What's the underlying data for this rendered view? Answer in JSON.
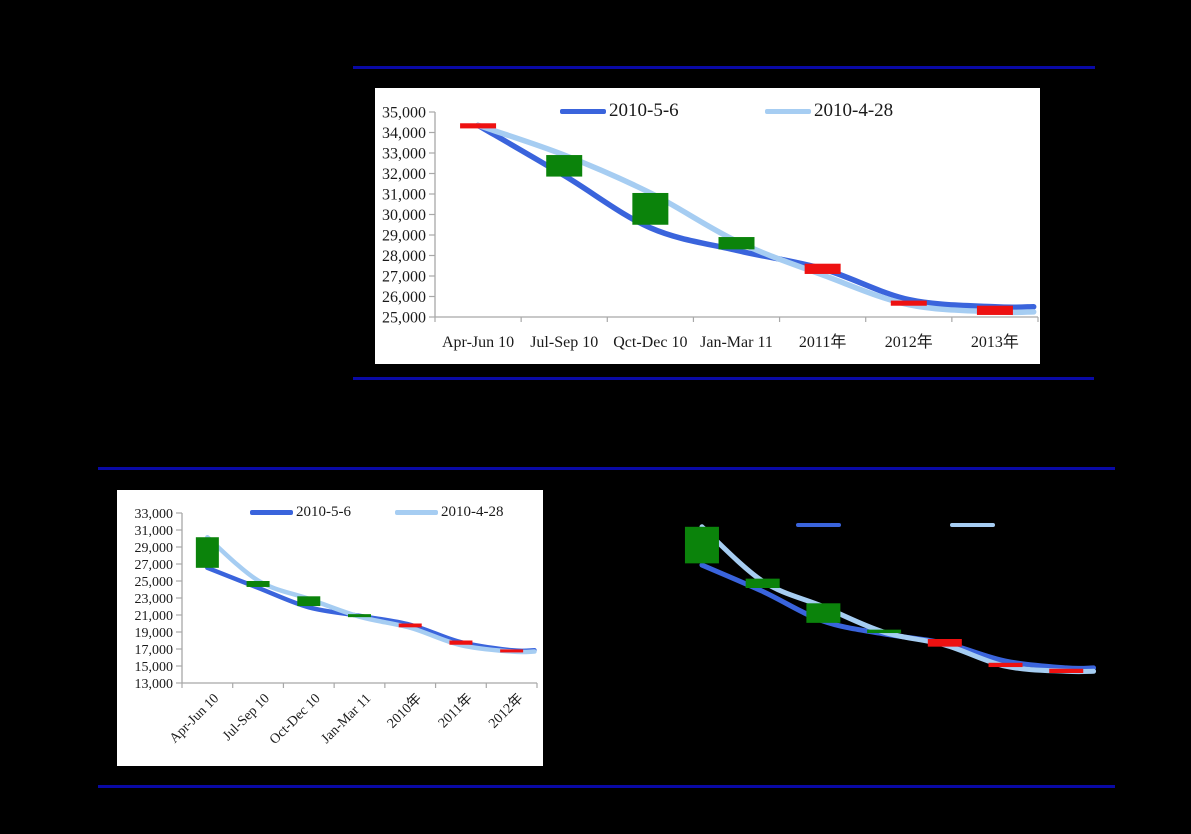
{
  "colors": {
    "background": "#000000",
    "panel": "#FFFFFF",
    "divider": "#0909A6",
    "axis": "#A8A8A8",
    "text": "#1A1A1A",
    "blue": "#3A64DC",
    "light_blue": "#A6CDF2",
    "green": "#0B830B",
    "red": "#EE1111"
  },
  "chart_data": [
    {
      "type": "line",
      "subtype": "forecast-revision lines with floating range bars",
      "categories": [
        "Apr-Jun 10",
        "Jul-Sep 10",
        "Qct-Dec 10",
        "Jan-Mar 11",
        "2011年",
        "2012年",
        "2013年"
      ],
      "series": [
        {
          "name": "2010-5-6",
          "color": "blue",
          "values": [
            34350,
            31900,
            29350,
            28250,
            27350,
            25850,
            25500
          ]
        },
        {
          "name": "2010-4-28",
          "color": "light_blue",
          "values": [
            34350,
            32900,
            31050,
            28700,
            27050,
            25600,
            25250
          ]
        }
      ],
      "bars": [
        {
          "cat": 0,
          "color": "red",
          "range": [
            34200,
            34450
          ]
        },
        {
          "cat": 1,
          "color": "green",
          "range": [
            31850,
            32900
          ]
        },
        {
          "cat": 2,
          "color": "green",
          "range": [
            29500,
            31050
          ]
        },
        {
          "cat": 3,
          "color": "green",
          "range": [
            28300,
            28900
          ]
        },
        {
          "cat": 4,
          "color": "red",
          "range": [
            27100,
            27600
          ]
        },
        {
          "cat": 5,
          "color": "red",
          "range": [
            25550,
            25800
          ]
        },
        {
          "cat": 6,
          "color": "red",
          "range": [
            25100,
            25550
          ]
        }
      ],
      "ylim": [
        25000,
        35000
      ],
      "yticks": [
        "35,000",
        "34,000",
        "33,000",
        "32,000",
        "31,000",
        "30,000",
        "29,000",
        "28,000",
        "27,000",
        "26,000",
        "25,000"
      ],
      "grid": false,
      "legend_position": "top-center"
    },
    {
      "type": "line",
      "subtype": "forecast-revision lines with floating range bars",
      "categories": [
        "Apr-Jun 10",
        "Jul-Sep 10",
        "Oct-Dec 10",
        "Jan-Mar 11",
        "2010年",
        "2011年",
        "2012年"
      ],
      "x_tick_rotation_deg": 45,
      "series": [
        {
          "name": "2010-5-6",
          "color": "blue",
          "values": [
            26550,
            24200,
            21900,
            20900,
            19850,
            17800,
            16850
          ]
        },
        {
          "name": "2010-4-28",
          "color": "light_blue",
          "values": [
            30150,
            25050,
            22900,
            20800,
            19500,
            17450,
            16700
          ]
        }
      ],
      "bars": [
        {
          "cat": 0,
          "color": "green",
          "range": [
            26550,
            30150
          ]
        },
        {
          "cat": 1,
          "color": "green",
          "range": [
            24300,
            25000
          ]
        },
        {
          "cat": 2,
          "color": "green",
          "range": [
            22050,
            23200
          ]
        },
        {
          "cat": 3,
          "color": "green",
          "range": [
            20750,
            21100
          ]
        },
        {
          "cat": 4,
          "color": "red",
          "range": [
            19550,
            20000
          ]
        },
        {
          "cat": 5,
          "color": "red",
          "range": [
            17500,
            18000
          ]
        },
        {
          "cat": 6,
          "color": "red",
          "range": [
            16700,
            16950
          ]
        }
      ],
      "ylim": [
        13000,
        33000
      ],
      "yticks": [
        "33,000",
        "31,000",
        "29,000",
        "27,000",
        "25,000",
        "23,000",
        "21,000",
        "19,000",
        "17,000",
        "15,000",
        "13,000"
      ],
      "grid": false,
      "legend_position": "top-center"
    },
    {
      "type": "line",
      "subtype": "forecast-revision lines with floating range bars",
      "note": "axis labels, tick labels and legend text are not visible (rendered black on black); values below are relative positions on an unlabeled axis (0-100)",
      "axis_labels_visible": false,
      "legend_text_visible": false,
      "values_unit": "relative-unlabeled-axis-0-100",
      "categories": null,
      "series": [
        {
          "name": "",
          "color": "blue",
          "values": [
            73.5,
            58,
            40.5,
            33,
            27.5,
            17,
            13
          ]
        },
        {
          "name": "",
          "color": "light_blue",
          "values": [
            96,
            64,
            49,
            34,
            26.5,
            14,
            11
          ]
        }
      ],
      "bars": [
        {
          "cat": 0,
          "color": "green",
          "range": [
            74.5,
            96
          ]
        },
        {
          "cat": 1,
          "color": "green",
          "range": [
            60,
            65.5
          ]
        },
        {
          "cat": 2,
          "color": "green",
          "range": [
            39.5,
            51
          ]
        },
        {
          "cat": 3,
          "color": "green",
          "range": [
            33.5,
            35.5
          ]
        },
        {
          "cat": 4,
          "color": "red",
          "range": [
            25.5,
            30
          ]
        },
        {
          "cat": 5,
          "color": "red",
          "range": [
            13.5,
            16
          ]
        },
        {
          "cat": 6,
          "color": "red",
          "range": [
            10,
            12.5
          ]
        }
      ],
      "ylim": [
        0,
        100
      ],
      "yticks": [],
      "grid": false,
      "legend_position": "top-center"
    }
  ]
}
